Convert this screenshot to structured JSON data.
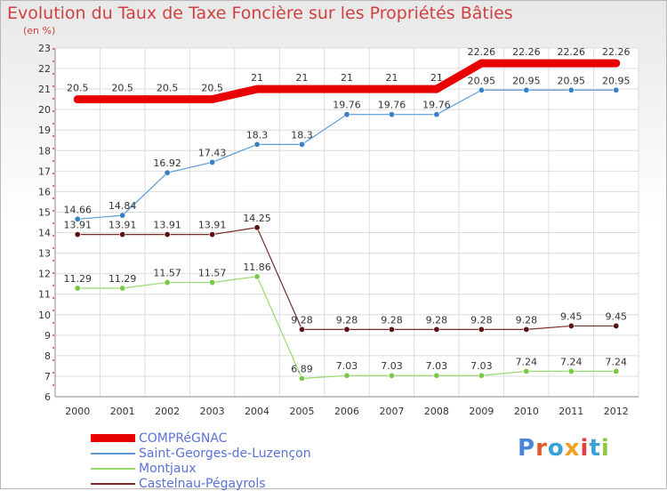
{
  "header": {
    "title": "Evolution du Taux de Taxe Foncière sur les Propriétés Bâties",
    "subtitle": "(en %)"
  },
  "logo": {
    "text": "Proxiti",
    "letter_colors": [
      "#4a86d8",
      "#e05a2a",
      "#3aa0d8",
      "#f0a020",
      "#e04040",
      "#3aa0d8",
      "#8cc840"
    ]
  },
  "chart_data": {
    "type": "line",
    "title": "Evolution du Taux de Taxe Foncière sur les Propriétés Bâties",
    "subtitle": "(en %)",
    "xlabel": "",
    "ylabel": "",
    "x": [
      "2000",
      "2001",
      "2002",
      "2003",
      "2004",
      "2005",
      "2006",
      "2007",
      "2008",
      "2009",
      "2010",
      "2011",
      "2012"
    ],
    "ylim": [
      6,
      23
    ],
    "yticks": [
      6,
      7,
      8,
      9,
      10,
      11,
      12,
      13,
      14,
      15,
      16,
      17,
      18,
      19,
      20,
      21,
      22,
      23
    ],
    "grid": true,
    "legend_position": "bottom-left",
    "series": [
      {
        "name": "COMPRéGNAC",
        "color": "#e80000",
        "point_color": "#e80000",
        "width": 9,
        "values": [
          20.5,
          20.5,
          20.5,
          20.5,
          21,
          21,
          21,
          21,
          21,
          22.26,
          22.26,
          22.26,
          22.26
        ],
        "labels": [
          "20.5",
          "20.5",
          "20.5",
          "20.5",
          "21",
          "21",
          "21",
          "21",
          "21",
          "22.26",
          "22.26",
          "22.26",
          "22.26"
        ]
      },
      {
        "name": "Saint-Georges-de-Luzençon",
        "color": "#5a9ad8",
        "point_color": "#3a80c8",
        "width": 1.2,
        "values": [
          14.66,
          14.84,
          16.92,
          17.43,
          18.3,
          18.3,
          19.76,
          19.76,
          19.76,
          20.95,
          20.95,
          20.95,
          20.95
        ],
        "labels": [
          "14.66",
          "14.84",
          "16.92",
          "17.43",
          "18.3",
          "18.3",
          "19.76",
          "19.76",
          "19.76",
          "20.95",
          "20.95",
          "20.95",
          "20.95"
        ]
      },
      {
        "name": "Montjaux",
        "color": "#9ad870",
        "point_color": "#7ac848",
        "width": 1.2,
        "values": [
          11.29,
          11.29,
          11.57,
          11.57,
          11.86,
          6.89,
          7.03,
          7.03,
          7.03,
          7.03,
          7.24,
          7.24,
          7.24
        ],
        "labels": [
          "11.29",
          "11.29",
          "11.57",
          "11.57",
          "11.86",
          "6.89",
          "7.03",
          "7.03",
          "7.03",
          "7.03",
          "7.24",
          "7.24",
          "7.24"
        ]
      },
      {
        "name": "Castelnau-Pégayrols",
        "color": "#7a2a2a",
        "point_color": "#5a1414",
        "width": 1.2,
        "values": [
          13.91,
          13.91,
          13.91,
          13.91,
          14.25,
          9.28,
          9.28,
          9.28,
          9.28,
          9.28,
          9.28,
          9.45,
          9.45
        ],
        "labels": [
          "13.91",
          "13.91",
          "13.91",
          "13.91",
          "14.25",
          "9.28",
          "9.28",
          "9.28",
          "9.28",
          "9.28",
          "9.28",
          "9.45",
          "9.45"
        ]
      }
    ]
  }
}
